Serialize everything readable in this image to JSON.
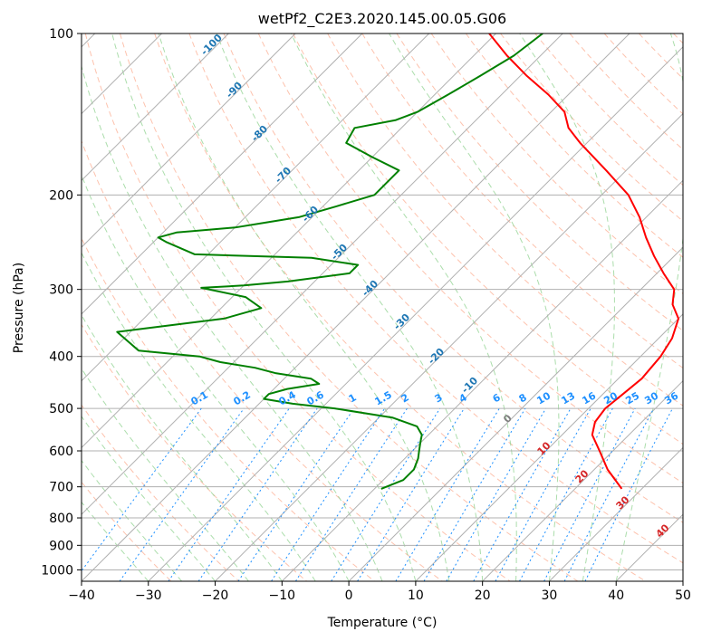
{
  "chart_data": {
    "type": "line",
    "title": "wetPf2_C2E3.2020.145.00.05.G06",
    "xlabel": "Temperature (°C)",
    "ylabel": "Pressure (hPa)",
    "xlim": [
      -40,
      50
    ],
    "ylim": [
      1050,
      100
    ],
    "y_scale": "log",
    "x_ticks": [
      "−40",
      "−30",
      "−20",
      "−10",
      "0",
      "10",
      "20",
      "30",
      "40",
      "50"
    ],
    "x_tick_values": [
      -40,
      -30,
      -20,
      -10,
      0,
      10,
      20,
      30,
      40,
      50
    ],
    "y_ticks": [
      "100",
      "200",
      "300",
      "400",
      "500",
      "600",
      "700",
      "800",
      "900",
      "1000"
    ],
    "y_tick_values": [
      100,
      200,
      300,
      400,
      500,
      600,
      700,
      800,
      900,
      1000
    ],
    "grid": true,
    "skew": "skew-T",
    "colors": {
      "temperature": "#ff0000",
      "dewpoint": "#008000",
      "isotherm": "#b0b0b0",
      "dry_adiabat": "#fcae91",
      "moist_adiabat": "#8fd18f",
      "mixing_ratio": "#1e90ff",
      "isotherm_label": "#1f77b4",
      "warm_label": "#d62728",
      "zero_label": "#7f7f7f"
    },
    "series": [
      {
        "color": "#ff0000",
        "p": [
          706,
          650,
          600,
          560,
          530,
          500,
          470,
          440,
          400,
          370,
          340,
          320,
          300,
          280,
          260,
          240,
          220,
          200,
          180,
          160,
          150,
          140,
          130,
          120,
          110,
          100
        ],
        "t": [
          27,
          22,
          18,
          14.5,
          13,
          12.5,
          13,
          13.5,
          13,
          12,
          10,
          7,
          5,
          1,
          -3,
          -7,
          -11,
          -16,
          -23,
          -31,
          -35,
          -38,
          -43,
          -49,
          -55,
          -61
        ]
      },
      {
        "color": "#008000",
        "p": [
          706,
          680,
          650,
          620,
          600,
          580,
          560,
          540,
          520,
          500,
          490,
          480,
          470,
          460,
          450,
          440,
          430,
          420,
          410,
          400,
          390,
          360,
          340,
          325,
          310,
          298,
          295,
          290,
          280,
          270,
          262,
          258,
          245,
          240,
          235,
          230,
          225,
          220,
          210,
          200,
          190,
          180,
          170,
          160,
          150,
          145,
          140,
          130,
          120,
          110,
          100
        ],
        "t": [
          -9,
          -7,
          -7,
          -8,
          -9,
          -10,
          -11,
          -13,
          -18,
          -28,
          -35,
          -40,
          -40,
          -38,
          -34,
          -36,
          -42,
          -46,
          -52,
          -56,
          -66,
          -72,
          -58,
          -54,
          -58,
          -66,
          -60,
          -54,
          -46,
          -46,
          -54,
          -72,
          -78,
          -80,
          -78,
          -70,
          -66,
          -62,
          -58,
          -54,
          -54,
          -54,
          -60,
          -66,
          -67,
          -62,
          -60,
          -58,
          -56,
          -54,
          -53
        ]
      }
    ],
    "labels": {
      "isotherms": [
        "-100",
        "-90",
        "-80",
        "-70",
        "-60",
        "-50",
        "-40",
        "-30",
        "-20",
        "-10"
      ],
      "warm_isotherms": [
        "10",
        "20",
        "30",
        "40"
      ],
      "zero": "0",
      "mixing_ratios": [
        "0.1",
        "0.2",
        "0.4",
        "0.6",
        "1",
        "1.5",
        "2",
        "3",
        "4",
        "6",
        "8",
        "10",
        "13",
        "16",
        "20",
        "25",
        "30",
        "36"
      ]
    }
  }
}
